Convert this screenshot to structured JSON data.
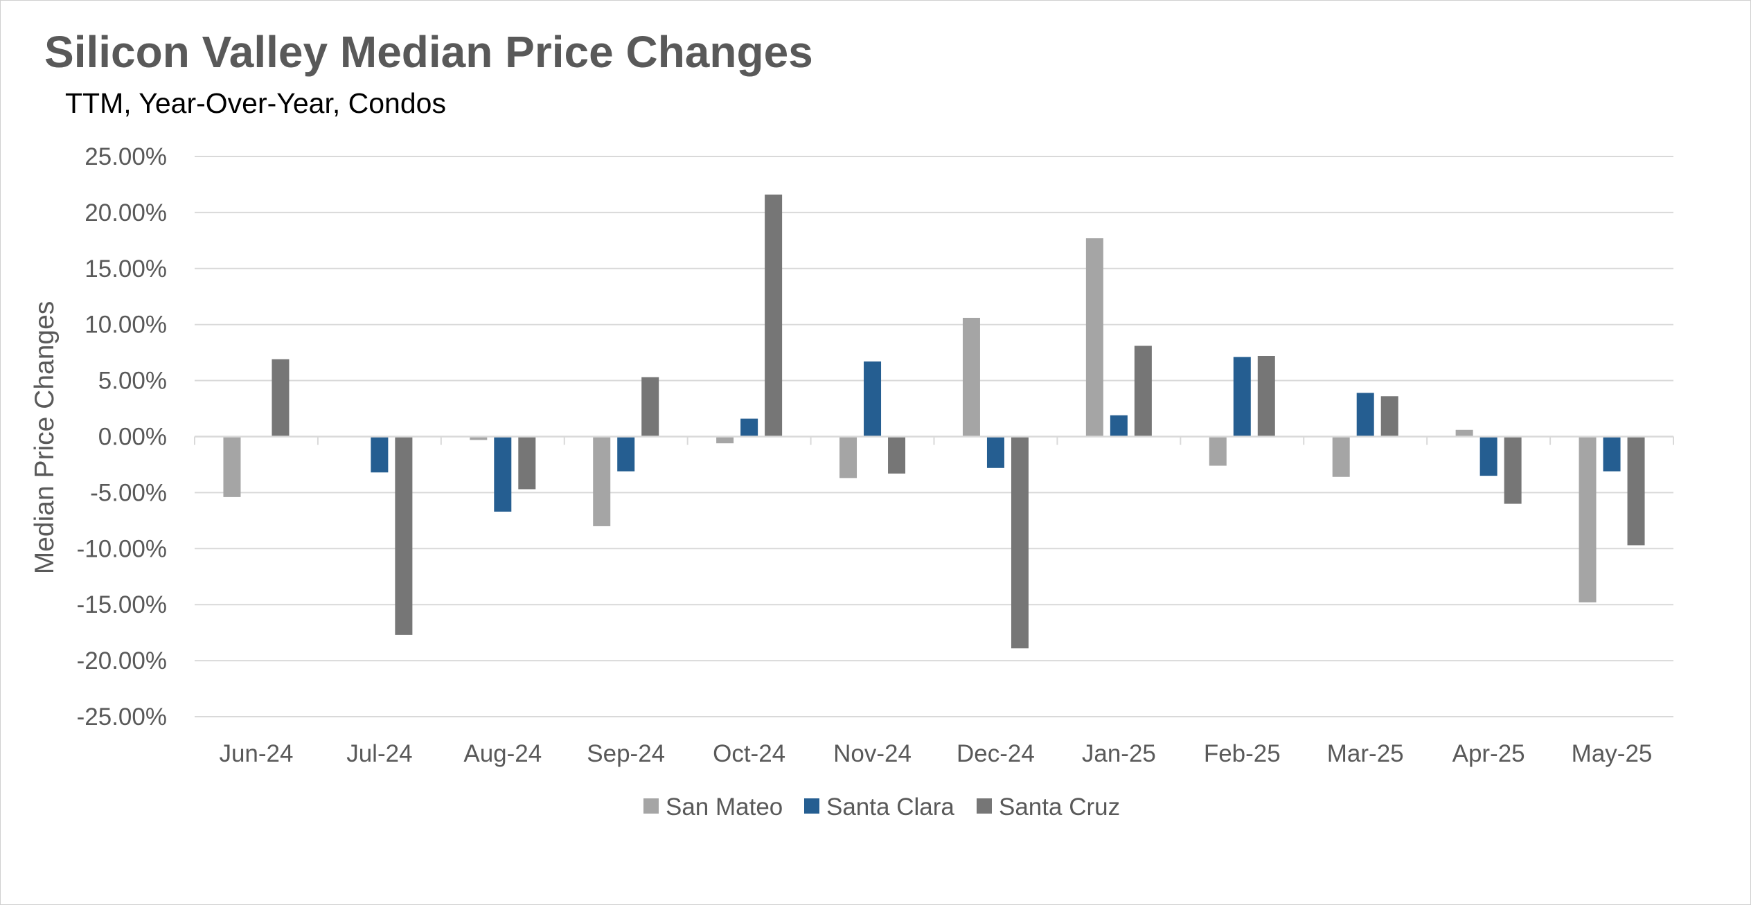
{
  "chart_data": {
    "type": "bar",
    "title": "Silicon Valley Median Price Changes",
    "subtitle": "TTM, Year-Over-Year, Condos",
    "ylabel": "Median Price Changes",
    "xlabel": "",
    "ylim": [
      -25,
      25
    ],
    "y_ticks": [
      "25.00%",
      "20.00%",
      "15.00%",
      "10.00%",
      "5.00%",
      "0.00%",
      "-5.00%",
      "-10.00%",
      "-15.00%",
      "-20.00%",
      "-25.00%"
    ],
    "y_tick_values": [
      25,
      20,
      15,
      10,
      5,
      0,
      -5,
      -10,
      -15,
      -20,
      -25
    ],
    "categories": [
      "Jun-24",
      "Jul-24",
      "Aug-24",
      "Sep-24",
      "Oct-24",
      "Nov-24",
      "Dec-24",
      "Jan-25",
      "Feb-25",
      "Mar-25",
      "Apr-25",
      "May-25"
    ],
    "series": [
      {
        "name": "San Mateo",
        "color": "#a5a5a5",
        "values": [
          -5.4,
          0.0,
          -0.3,
          -8.0,
          -0.6,
          -3.7,
          10.6,
          17.7,
          -2.6,
          -3.6,
          0.6,
          -14.8
        ]
      },
      {
        "name": "Santa Clara",
        "color": "#255e91",
        "values": [
          0.0,
          -3.2,
          -6.7,
          -3.1,
          1.6,
          6.7,
          -2.8,
          1.9,
          7.1,
          3.9,
          -3.5,
          -3.1
        ]
      },
      {
        "name": "Santa Cruz",
        "color": "#767676",
        "values": [
          6.9,
          -17.7,
          -4.7,
          5.3,
          21.6,
          -3.3,
          -18.9,
          8.1,
          7.2,
          3.6,
          -6.0,
          -9.7
        ]
      }
    ],
    "grid": true,
    "legend_position": "bottom"
  }
}
